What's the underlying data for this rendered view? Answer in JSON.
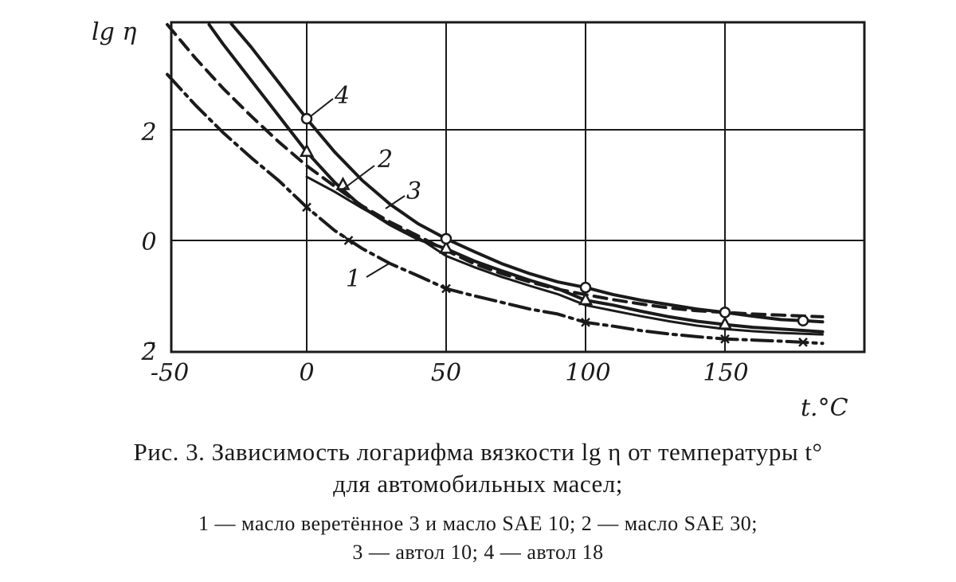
{
  "chart_data": {
    "type": "line",
    "y_axis_label": "lg η",
    "x_axis_label": "t.°C",
    "x_ticks": [
      "-50",
      "0",
      "50",
      "100",
      "150"
    ],
    "y_ticks": [
      "2",
      "0",
      "2̄"
    ],
    "xlim": [
      -50,
      200
    ],
    "ylim": [
      -2,
      4
    ],
    "grid": true,
    "series": [
      {
        "name": "1",
        "style": "dash-dot",
        "marker": "x",
        "curve": [
          [
            -50,
            3.0
          ],
          [
            -40,
            2.45
          ],
          [
            -30,
            1.95
          ],
          [
            -20,
            1.5
          ],
          [
            -10,
            1.08
          ],
          [
            0,
            0.6
          ],
          [
            10,
            0.18
          ],
          [
            20,
            -0.15
          ],
          [
            30,
            -0.42
          ],
          [
            40,
            -0.64
          ],
          [
            50,
            -0.87
          ],
          [
            60,
            -1.0
          ],
          [
            70,
            -1.12
          ],
          [
            80,
            -1.24
          ],
          [
            90,
            -1.33
          ],
          [
            100,
            -1.48
          ],
          [
            110,
            -1.55
          ],
          [
            120,
            -1.63
          ],
          [
            130,
            -1.69
          ],
          [
            140,
            -1.74
          ],
          [
            150,
            -1.78
          ],
          [
            160,
            -1.8
          ],
          [
            170,
            -1.82
          ],
          [
            178,
            -1.84
          ],
          [
            185,
            -1.86
          ]
        ],
        "markers": [
          [
            0,
            0.6
          ],
          [
            15,
            0.0
          ],
          [
            50,
            -0.87
          ],
          [
            100,
            -1.48
          ],
          [
            150,
            -1.78
          ],
          [
            178,
            -1.84
          ]
        ]
      },
      {
        "name": "2",
        "style": "solid",
        "marker": "triangle",
        "curve": [
          [
            -35,
            3.9
          ],
          [
            -30,
            3.55
          ],
          [
            -20,
            2.9
          ],
          [
            -10,
            2.25
          ],
          [
            0,
            1.6
          ],
          [
            10,
            1.05
          ],
          [
            20,
            0.6
          ],
          [
            30,
            0.28
          ],
          [
            40,
            0.02
          ],
          [
            50,
            -0.15
          ],
          [
            60,
            -0.37
          ],
          [
            70,
            -0.55
          ],
          [
            80,
            -0.72
          ],
          [
            90,
            -0.87
          ],
          [
            100,
            -1.08
          ],
          [
            110,
            -1.17
          ],
          [
            120,
            -1.28
          ],
          [
            130,
            -1.38
          ],
          [
            140,
            -1.46
          ],
          [
            150,
            -1.52
          ],
          [
            160,
            -1.57
          ],
          [
            170,
            -1.6
          ],
          [
            185,
            -1.65
          ]
        ],
        "markers": [
          [
            0,
            1.6
          ],
          [
            13,
            1.0
          ],
          [
            50,
            -0.15
          ],
          [
            100,
            -1.08
          ],
          [
            150,
            -1.52
          ]
        ]
      },
      {
        "name": "3",
        "style": "dashed",
        "marker": "none",
        "curve": [
          [
            -50,
            3.9
          ],
          [
            -40,
            3.3
          ],
          [
            -30,
            2.75
          ],
          [
            -20,
            2.25
          ],
          [
            -10,
            1.78
          ],
          [
            0,
            1.35
          ],
          [
            10,
            0.98
          ],
          [
            20,
            0.62
          ],
          [
            30,
            0.33
          ],
          [
            40,
            0.08
          ],
          [
            50,
            -0.18
          ],
          [
            60,
            -0.42
          ],
          [
            70,
            -0.6
          ],
          [
            80,
            -0.75
          ],
          [
            90,
            -0.88
          ],
          [
            100,
            -0.98
          ],
          [
            110,
            -1.07
          ],
          [
            120,
            -1.15
          ],
          [
            130,
            -1.22
          ],
          [
            140,
            -1.27
          ],
          [
            150,
            -1.3
          ],
          [
            160,
            -1.33
          ],
          [
            170,
            -1.35
          ],
          [
            180,
            -1.37
          ],
          [
            185,
            -1.38
          ]
        ],
        "markers": []
      },
      {
        "name": "4",
        "style": "solid",
        "marker": "circle",
        "curve": [
          [
            -27,
            3.95
          ],
          [
            -20,
            3.5
          ],
          [
            -10,
            2.85
          ],
          [
            0,
            2.2
          ],
          [
            10,
            1.6
          ],
          [
            20,
            1.08
          ],
          [
            30,
            0.65
          ],
          [
            40,
            0.3
          ],
          [
            50,
            0.03
          ],
          [
            60,
            -0.2
          ],
          [
            70,
            -0.42
          ],
          [
            80,
            -0.6
          ],
          [
            90,
            -0.75
          ],
          [
            100,
            -0.85
          ],
          [
            110,
            -0.98
          ],
          [
            120,
            -1.08
          ],
          [
            130,
            -1.16
          ],
          [
            140,
            -1.24
          ],
          [
            150,
            -1.3
          ],
          [
            160,
            -1.37
          ],
          [
            170,
            -1.43
          ],
          [
            178,
            -1.45
          ],
          [
            185,
            -1.47
          ]
        ],
        "markers": [
          [
            0,
            2.2
          ],
          [
            50,
            0.03
          ],
          [
            100,
            -0.85
          ],
          [
            150,
            -1.3
          ],
          [
            178,
            -1.45
          ]
        ]
      },
      {
        "name": "",
        "style": "solid",
        "marker": "none",
        "curve": [
          [
            0,
            1.15
          ],
          [
            10,
            0.88
          ],
          [
            20,
            0.58
          ],
          [
            30,
            0.3
          ],
          [
            40,
            0.05
          ],
          [
            50,
            -0.28
          ],
          [
            60,
            -0.48
          ],
          [
            70,
            -0.66
          ],
          [
            80,
            -0.82
          ],
          [
            90,
            -0.97
          ],
          [
            100,
            -1.17
          ],
          [
            110,
            -1.27
          ],
          [
            120,
            -1.37
          ],
          [
            130,
            -1.46
          ],
          [
            140,
            -1.54
          ],
          [
            150,
            -1.6
          ],
          [
            160,
            -1.64
          ],
          [
            170,
            -1.67
          ],
          [
            185,
            -1.7
          ]
        ],
        "markers": []
      }
    ]
  },
  "caption": {
    "title_line1": "Рис. 3. Зависимость логарифма вязкости lg η от температуры t°",
    "title_line2": "для автомобильных масел;",
    "legend_line1": "1 — масло веретённое 3 и масло SAE 10; 2 — масло SAE 30;",
    "legend_line2": "3 — автол 10; 4 — автол 18"
  }
}
